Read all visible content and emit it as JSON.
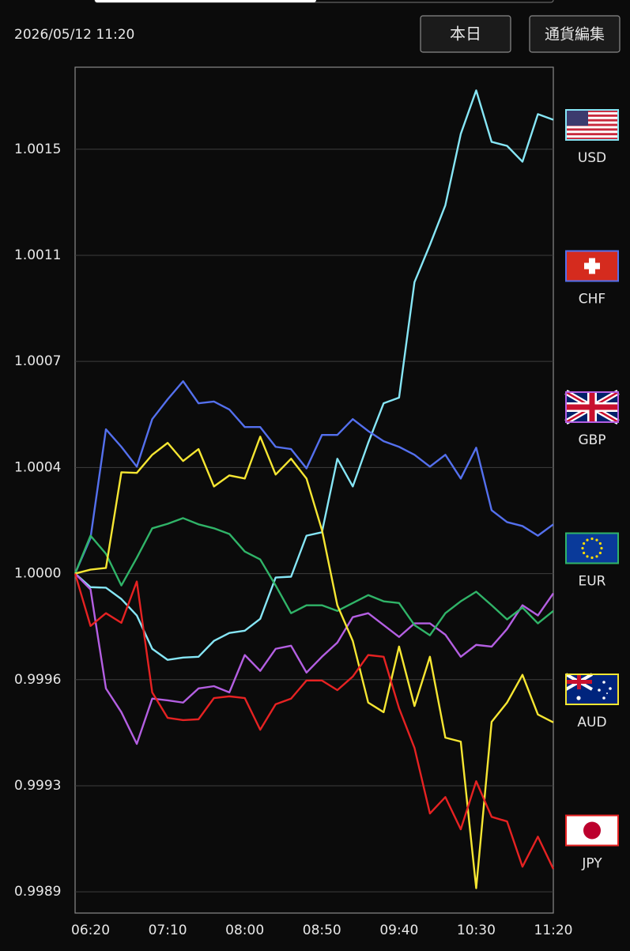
{
  "header": {
    "datetime": "2026/05/12 11:20",
    "buttons": [
      "本日",
      "通貨編集"
    ]
  },
  "chart_data": {
    "type": "line",
    "categories": [
      null,
      "06:20",
      null,
      null,
      null,
      null,
      "07:10",
      null,
      null,
      null,
      null,
      "08:00",
      null,
      null,
      null,
      null,
      "08:50",
      null,
      null,
      null,
      null,
      "09:40",
      null,
      null,
      null,
      null,
      "10:30",
      null,
      null,
      null,
      null,
      "11:20"
    ],
    "ylim": [
      0.9988,
      1.00179
    ],
    "yticks": [
      {
        "value": 0.998875,
        "label": "0.9989"
      },
      {
        "value": 0.99925,
        "label": "0.9993"
      },
      {
        "value": 0.999625,
        "label": "0.9996"
      },
      {
        "value": 1,
        "label": "1.0000"
      },
      {
        "value": 1.000375,
        "label": "1.0004"
      },
      {
        "value": 1.00075,
        "label": "1.0007"
      },
      {
        "value": 1.001125,
        "label": "1.0011"
      },
      1.0015
    ],
    "grid": true,
    "legend": "right",
    "series": [
      {
        "name": "USD",
        "color": "#86e6f6",
        "values": [
          1.0,
          0.999952,
          0.99995,
          0.99991,
          0.999852,
          0.999734,
          0.999695,
          0.999703,
          0.999706,
          0.999762,
          0.99979,
          0.999798,
          0.99984,
          0.999986,
          0.999989,
          1.000134,
          1.000146,
          1.000406,
          1.000308,
          1.000462,
          1.000602,
          1.000622,
          1.00103,
          1.001162,
          1.001302,
          1.001554,
          1.001708,
          1.001526,
          1.001512,
          1.001456,
          1.001624,
          1.001604
        ]
      },
      {
        "name": "CHF",
        "color": "#5470ee",
        "values": [
          1.0,
          1.000126,
          1.00051,
          1.000448,
          1.000378,
          1.000546,
          1.000616,
          1.00068,
          1.000602,
          1.000608,
          1.00058,
          1.000518,
          1.000518,
          1.000448,
          1.00044,
          1.000372,
          1.00049,
          1.00049,
          1.000546,
          1.000504,
          1.000468,
          1.000448,
          1.00042,
          1.000378,
          1.00042,
          1.000336,
          1.000445,
          1.000224,
          1.000182,
          1.000168,
          1.000134,
          1.000174
        ]
      },
      {
        "name": "GBP",
        "color": "#b45fe2",
        "values": [
          1.0,
          0.999944,
          0.999594,
          0.99951,
          0.999398,
          0.999558,
          0.999552,
          0.999544,
          0.999594,
          0.999602,
          0.99958,
          0.999712,
          0.999656,
          0.999734,
          0.999745,
          0.99965,
          0.999706,
          0.999756,
          0.999846,
          0.99986,
          0.999818,
          0.999776,
          0.999824,
          0.999824,
          0.999784,
          0.999706,
          0.999748,
          0.999742,
          0.999804,
          0.999888,
          0.999852,
          0.99993
        ]
      },
      {
        "name": "EUR",
        "color": "#30b468",
        "values": [
          1.0,
          1.000134,
          1.00007,
          0.999958,
          1.000056,
          1.00016,
          1.000176,
          1.000196,
          1.000174,
          1.00016,
          1.00014,
          1.000078,
          1.00005,
          0.999958,
          0.99986,
          0.999888,
          0.999888,
          0.999868,
          0.999896,
          0.999924,
          0.999902,
          0.999896,
          0.999818,
          0.999782,
          0.99986,
          0.999902,
          0.999936,
          0.999888,
          0.999838,
          0.99988,
          0.999824,
          0.999868
        ]
      },
      {
        "name": "AUD",
        "color": "#f6e632",
        "values": [
          1.0,
          1.000014,
          1.00002,
          1.000358,
          1.000356,
          1.00042,
          1.000462,
          1.000398,
          1.00044,
          1.000308,
          1.000347,
          1.000336,
          1.000484,
          1.00035,
          1.000406,
          1.000336,
          1.000154,
          0.999888,
          0.999762,
          0.999544,
          0.99951,
          0.999742,
          0.999532,
          0.999706,
          0.99942,
          0.999406,
          0.998888,
          0.999476,
          0.999544,
          0.999642,
          0.999502,
          0.999474
        ]
      },
      {
        "name": "JPY",
        "color": "#e62222",
        "values": [
          1.0,
          0.999815,
          0.99986,
          0.999826,
          0.999972,
          0.99958,
          0.99949,
          0.999482,
          0.999485,
          0.99956,
          0.999566,
          0.99956,
          0.999448,
          0.999538,
          0.999558,
          0.999622,
          0.999622,
          0.999588,
          0.999636,
          0.999712,
          0.999706,
          0.999524,
          0.999384,
          0.999152,
          0.99921,
          0.999096,
          0.999266,
          0.99914,
          0.999124,
          0.998964,
          0.99907,
          0.998956
        ]
      }
    ]
  }
}
